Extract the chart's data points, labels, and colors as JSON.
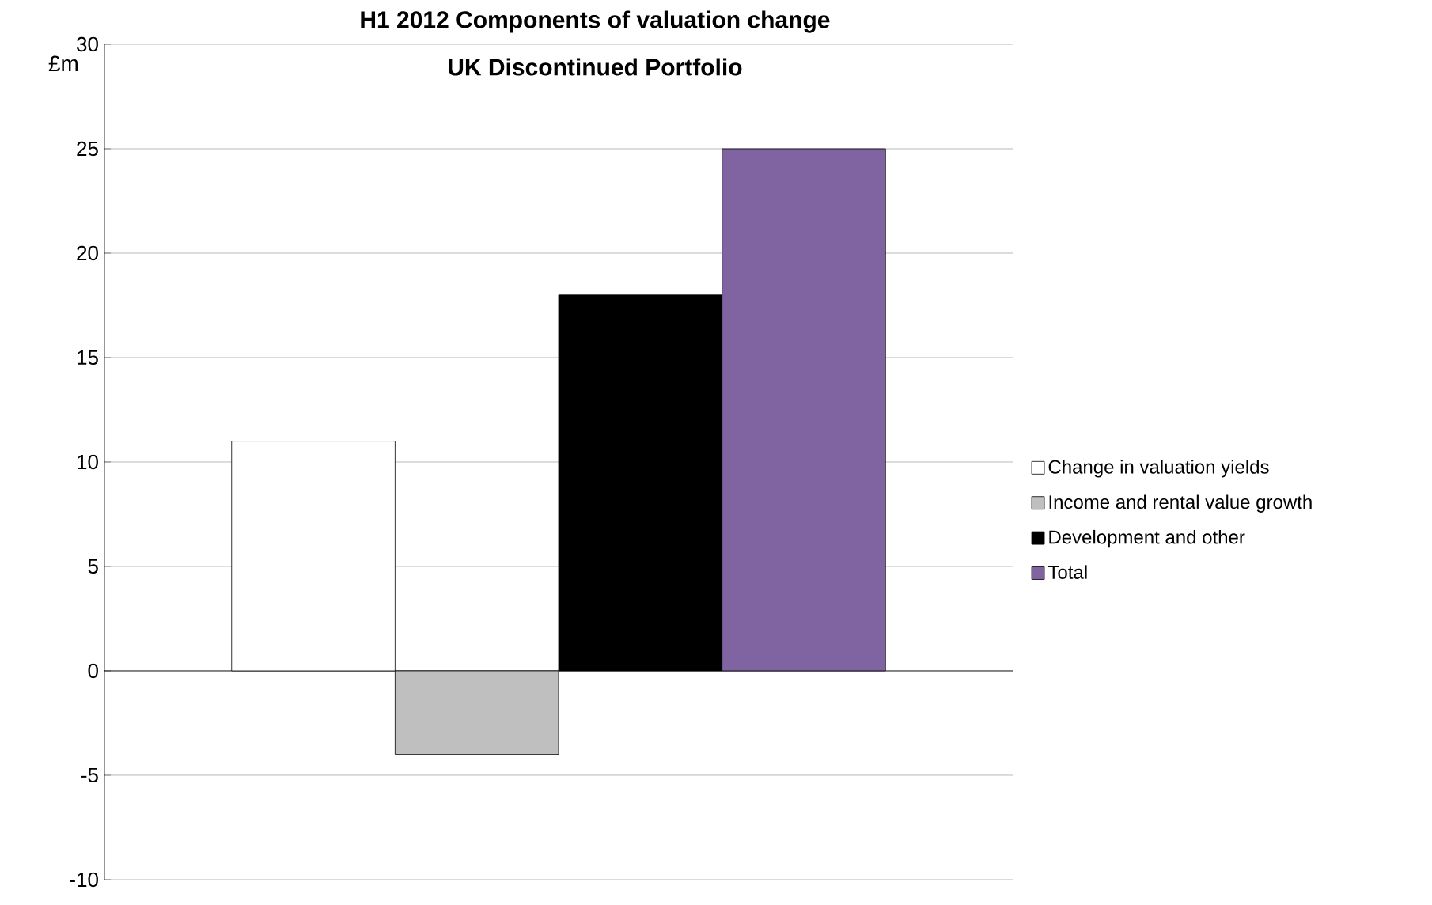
{
  "chart_data": {
    "type": "bar",
    "title": "H1 2012 Components of valuation change\nUK Discontinued Portfolio",
    "ylabel": "£m",
    "categories": [
      null
    ],
    "series": [
      {
        "name": "Change in valuation yields",
        "color": "#ffffff",
        "values": [
          11
        ]
      },
      {
        "name": "Income and rental value growth",
        "color": "#bfbfbf",
        "values": [
          -4
        ]
      },
      {
        "name": "Development and other",
        "color": "#000000",
        "values": [
          18
        ]
      },
      {
        "name": "Total",
        "color": "#8064a2",
        "values": [
          25
        ]
      }
    ],
    "ylim": [
      -10,
      30
    ],
    "yticks": [
      -10,
      -5,
      0,
      5,
      10,
      15,
      20,
      25,
      30
    ],
    "grid": "y",
    "legend": "right",
    "tick_labels": "y"
  }
}
